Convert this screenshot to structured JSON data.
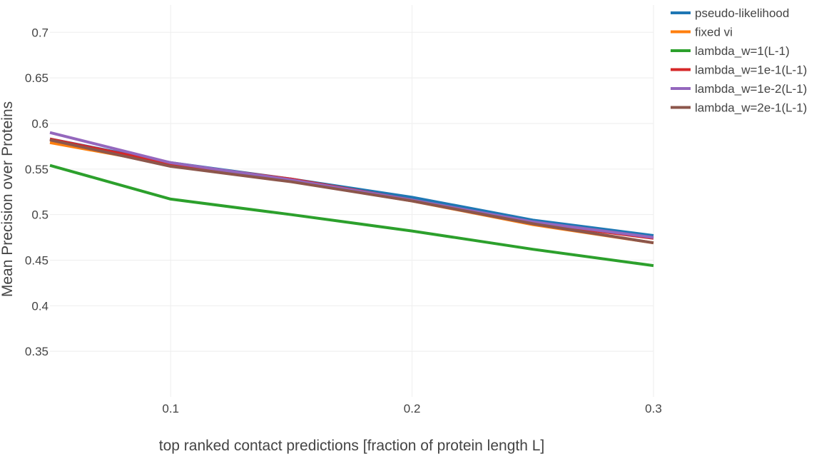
{
  "chart_data": {
    "type": "line",
    "title": "",
    "xlabel": "top ranked contact predictions [fraction of protein length L]",
    "ylabel": "Mean Precision over Proteins",
    "x": [
      0.05,
      0.1,
      0.15,
      0.2,
      0.25,
      0.3
    ],
    "xlim": [
      0.05,
      0.3
    ],
    "ylim": [
      0.3,
      0.73
    ],
    "xticks": [
      0.1,
      0.2,
      0.3
    ],
    "xtick_labels": [
      "0.1",
      "0.2",
      "0.3"
    ],
    "yticks": [
      0.35,
      0.4,
      0.45,
      0.5,
      0.55,
      0.6,
      0.65,
      0.7
    ],
    "ytick_labels": [
      "0.35",
      "0.4",
      "0.45",
      "0.5",
      "0.55",
      "0.6",
      "0.65",
      "0.7"
    ],
    "grid": true,
    "legend_position": "top-right, outside plot",
    "series": [
      {
        "name": "pseudo-likelihood",
        "color": "#1f77b4",
        "values": [
          0.583,
          0.557,
          0.539,
          0.519,
          0.494,
          0.477
        ]
      },
      {
        "name": "fixed vi",
        "color": "#ff7f0e",
        "values": [
          0.579,
          0.555,
          0.537,
          0.515,
          0.489,
          0.469
        ]
      },
      {
        "name": "lambda_w=1(L-1)",
        "color": "#2ca02c",
        "values": [
          0.554,
          0.517,
          0.5,
          0.482,
          0.462,
          0.444
        ]
      },
      {
        "name": "lambda_w=1e-1(L-1)",
        "color": "#d62728",
        "values": [
          0.583,
          0.556,
          0.539,
          0.516,
          0.491,
          0.474
        ]
      },
      {
        "name": "lambda_w=1e-2(L-1)",
        "color": "#9467bd",
        "values": [
          0.59,
          0.557,
          0.538,
          0.516,
          0.492,
          0.475
        ]
      },
      {
        "name": "lambda_w=2e-1(L-1)",
        "color": "#8c564b",
        "values": [
          0.582,
          0.553,
          0.536,
          0.515,
          0.49,
          0.469
        ]
      }
    ]
  }
}
